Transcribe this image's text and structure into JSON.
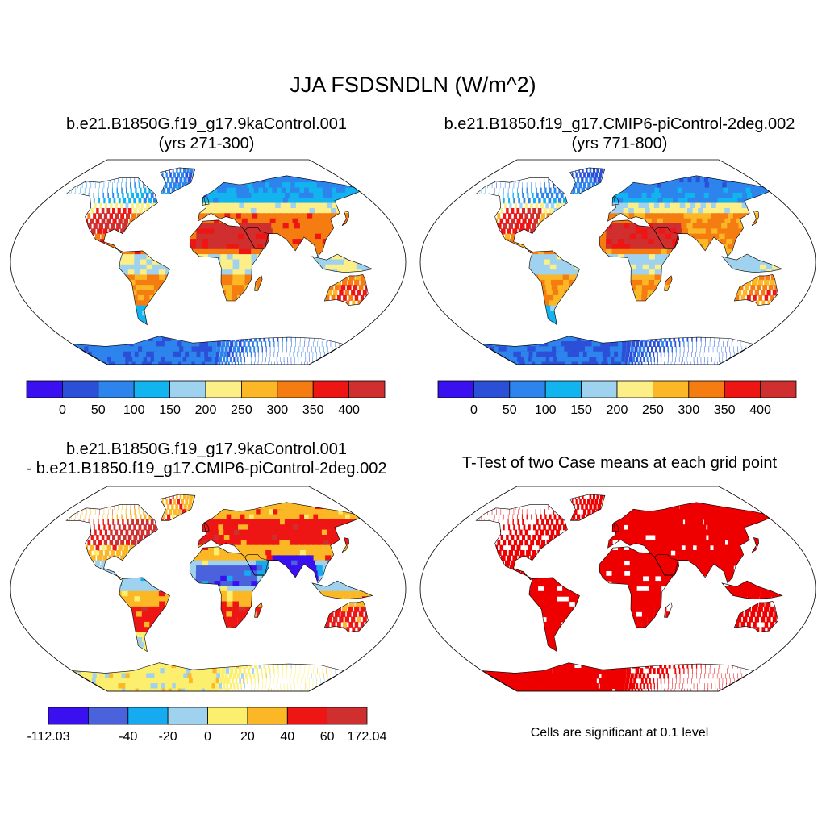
{
  "title": "JJA FSDSNDLN (W/m^2)",
  "panels": [
    {
      "id": "p1",
      "title_line1": "b.e21.B1850G.f19_g17.9kaControl.001",
      "title_line2": "(yrs 271-300)",
      "scheme": "abs"
    },
    {
      "id": "p2",
      "title_line1": "b.e21.B1850.f19_g17.CMIP6-piControl-2deg.002",
      "title_line2": "(yrs 771-800)",
      "scheme": "abs2"
    },
    {
      "id": "p3",
      "title_line1": "b.e21.B1850G.f19_g17.9kaControl.001",
      "title_line2": "- b.e21.B1850.f19_g17.CMIP6-piControl-2deg.002",
      "scheme": "diff"
    },
    {
      "id": "p4",
      "title_line1": "T-Test of two Case means at each grid point",
      "scheme": "sig"
    }
  ],
  "colorbar_abs": {
    "colors": [
      "#3a10f0",
      "#2c4fd8",
      "#2c84ec",
      "#12b4f0",
      "#9fd2ee",
      "#fcef88",
      "#fbb725",
      "#f57c10",
      "#ee1515",
      "#d02f2f"
    ],
    "labels": [
      "0",
      "50",
      "100",
      "150",
      "200",
      "250",
      "300",
      "350",
      "400"
    ]
  },
  "colorbar_diff": {
    "colors": [
      "#3a10f0",
      "#4a62dc",
      "#16aaf0",
      "#9fd2ee",
      "#fcef6e",
      "#fbb725",
      "#ee1515",
      "#d02f2f"
    ],
    "labels": [
      "-112.03",
      "-40",
      "-20",
      "0",
      "20",
      "40",
      "60",
      "172.04"
    ]
  },
  "significance_color": "#ee0000",
  "significance_note": "Cells are significant at 0.1 level"
}
